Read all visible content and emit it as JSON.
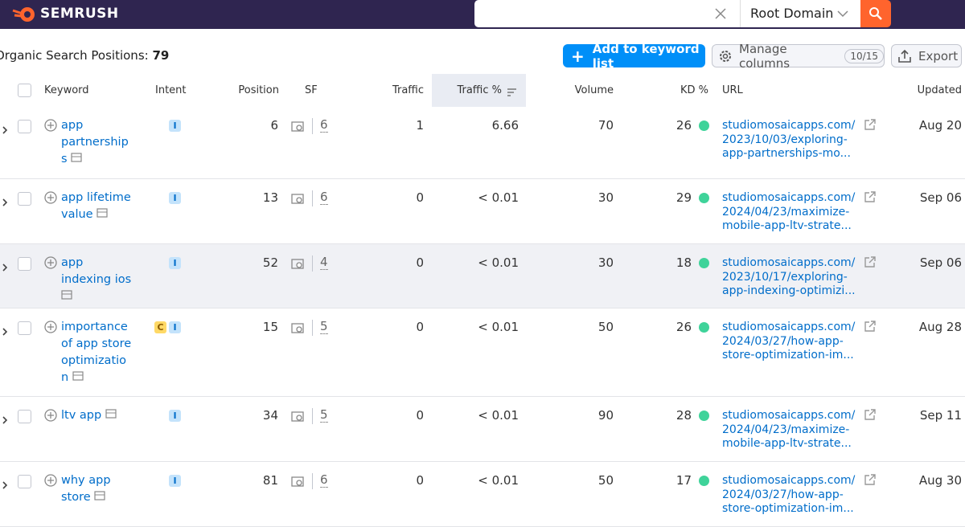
{
  "header": {
    "logo": "SEMRUSH",
    "search_scope": "Root Domain"
  },
  "toolbar": {
    "title": "Organic Search Positions:",
    "count": "79",
    "add_button": "Add to keyword list",
    "manage_button": "Manage columns",
    "manage_count": "10/15",
    "export_button": "Export"
  },
  "table": {
    "columns": [
      "Keyword",
      "Intent",
      "Position",
      "SF",
      "Traffic",
      "Traffic %",
      "Volume",
      "KD %",
      "URL",
      "Updated"
    ],
    "rows": [
      {
        "keyword": "app partnerships",
        "intents": [
          "I"
        ],
        "position": "6",
        "sf": "6",
        "traffic": "1",
        "traffic_pct": "6.66",
        "volume": "70",
        "kd": "26",
        "url": [
          "studiomosaicapps.com/",
          "2023/10/03/exploring-",
          "app-partnerships-mo..."
        ],
        "updated": "Aug 20"
      },
      {
        "keyword": "app lifetime value",
        "intents": [
          "I"
        ],
        "position": "13",
        "sf": "6",
        "traffic": "0",
        "traffic_pct": "< 0.01",
        "volume": "30",
        "kd": "29",
        "url": [
          "studiomosaicapps.com/",
          "2024/04/23/maximize-",
          "mobile-app-ltv-strate..."
        ],
        "updated": "Sep 06"
      },
      {
        "keyword": "app indexing ios",
        "intents": [
          "I"
        ],
        "position": "52",
        "sf": "4",
        "traffic": "0",
        "traffic_pct": "< 0.01",
        "volume": "30",
        "kd": "18",
        "url": [
          "studiomosaicapps.com/",
          "2023/10/17/exploring-",
          "app-indexing-optimizi..."
        ],
        "updated": "Sep 06"
      },
      {
        "keyword": "importance of app store optimization",
        "intents": [
          "C",
          "I"
        ],
        "position": "15",
        "sf": "5",
        "traffic": "0",
        "traffic_pct": "< 0.01",
        "volume": "50",
        "kd": "26",
        "url": [
          "studiomosaicapps.com/",
          "2024/03/27/how-app-",
          "store-optimization-im..."
        ],
        "updated": "Aug 28"
      },
      {
        "keyword": "ltv app",
        "intents": [
          "I"
        ],
        "position": "34",
        "sf": "5",
        "traffic": "0",
        "traffic_pct": "< 0.01",
        "volume": "90",
        "kd": "28",
        "url": [
          "studiomosaicapps.com/",
          "2024/04/23/maximize-",
          "mobile-app-ltv-strate..."
        ],
        "updated": "Sep 11"
      },
      {
        "keyword": "why app store",
        "intents": [
          "I"
        ],
        "position": "81",
        "sf": "6",
        "traffic": "0",
        "traffic_pct": "< 0.01",
        "volume": "50",
        "kd": "17",
        "url": [
          "studiomosaicapps.com/",
          "2024/03/27/how-app-",
          "store-optimization-im..."
        ],
        "updated": "Aug 30"
      }
    ]
  }
}
